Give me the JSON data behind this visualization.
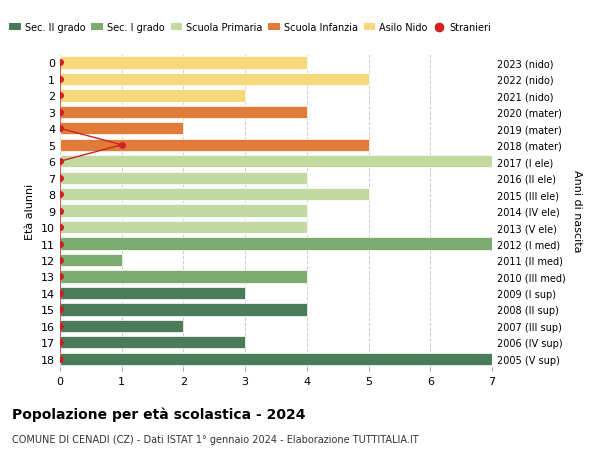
{
  "ages": [
    18,
    17,
    16,
    15,
    14,
    13,
    12,
    11,
    10,
    9,
    8,
    7,
    6,
    5,
    4,
    3,
    2,
    1,
    0
  ],
  "years": [
    "2005 (V sup)",
    "2006 (IV sup)",
    "2007 (III sup)",
    "2008 (II sup)",
    "2009 (I sup)",
    "2010 (III med)",
    "2011 (II med)",
    "2012 (I med)",
    "2013 (V ele)",
    "2014 (IV ele)",
    "2015 (III ele)",
    "2016 (II ele)",
    "2017 (I ele)",
    "2018 (mater)",
    "2019 (mater)",
    "2020 (mater)",
    "2021 (nido)",
    "2022 (nido)",
    "2023 (nido)"
  ],
  "values": [
    7,
    3,
    2,
    4,
    3,
    4,
    1,
    7,
    4,
    4,
    5,
    4,
    7,
    5,
    2,
    4,
    3,
    5,
    4
  ],
  "colors": [
    "#4a7c59",
    "#4a7c59",
    "#4a7c59",
    "#4a7c59",
    "#4a7c59",
    "#7dab6e",
    "#7dab6e",
    "#7dab6e",
    "#c2d9a0",
    "#c2d9a0",
    "#c2d9a0",
    "#c2d9a0",
    "#c2d9a0",
    "#e07b39",
    "#e07b39",
    "#e07b39",
    "#f5d87a",
    "#f5d87a",
    "#f5d87a"
  ],
  "stranieri_by_age": {
    "5": 1
  },
  "stranieri_color": "#cc2222",
  "legend_labels": [
    "Sec. II grado",
    "Sec. I grado",
    "Scuola Primaria",
    "Scuola Infanzia",
    "Asilo Nido",
    "Stranieri"
  ],
  "legend_colors": [
    "#4a7c59",
    "#7dab6e",
    "#c2d9a0",
    "#e07b39",
    "#f5d87a",
    "#cc2222"
  ],
  "title": "Popolazione per età scolastica - 2024",
  "subtitle": "COMUNE DI CENADI (CZ) - Dati ISTAT 1° gennaio 2024 - Elaborazione TUTTITALIA.IT",
  "ylabel": "Età alunni",
  "right_ylabel": "Anni di nascita",
  "xlim": [
    0,
    7
  ],
  "xticks": [
    0,
    1,
    2,
    3,
    4,
    5,
    6,
    7
  ],
  "bar_height": 0.75,
  "background_color": "#ffffff"
}
